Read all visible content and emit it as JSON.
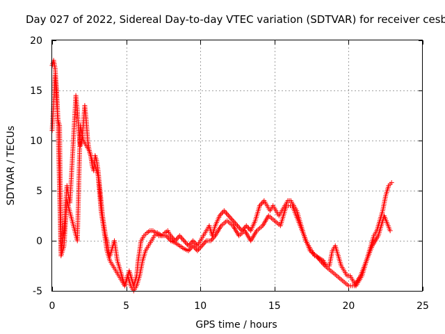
{
  "chart_data": {
    "type": "scatter",
    "title": "Day 027 of 2022, Sidereal Day-to-day VTEC variation (SDTVAR) for receiver cesb",
    "xlabel": "GPS time / hours",
    "ylabel": "SDTVAR / TECUs",
    "xlim": [
      0,
      25
    ],
    "ylim": [
      -5,
      20
    ],
    "x_ticks": [
      "0",
      "5",
      "10",
      "15",
      "20",
      "25"
    ],
    "y_ticks": [
      "-5",
      "0",
      "5",
      "10",
      "15",
      "20"
    ],
    "grid": true,
    "marker": "+",
    "series": [
      {
        "name": "SDTVAR",
        "color": "#ff0000",
        "x": [
          0.0,
          0.1,
          0.2,
          0.3,
          0.4,
          0.5,
          0.6,
          0.7,
          0.8,
          0.9,
          1.0,
          1.1,
          1.2,
          1.6,
          1.7,
          1.8,
          1.9,
          2.0,
          2.1,
          2.2,
          2.3,
          2.4,
          2.5,
          2.6,
          2.7,
          2.8,
          2.9,
          3.0,
          3.1,
          3.2,
          3.3,
          3.4,
          3.5,
          3.6,
          3.7,
          3.8,
          3.9,
          4.0,
          4.1,
          4.2,
          4.3,
          4.4,
          4.5,
          4.6,
          4.7,
          4.8,
          4.9,
          5.0,
          5.1,
          5.2,
          5.3,
          5.4,
          5.5,
          5.6,
          5.7,
          5.8,
          5.9,
          6.0,
          6.2,
          6.4,
          6.6,
          6.8,
          7.0,
          7.2,
          7.4,
          7.6,
          7.8,
          8.0,
          8.3,
          8.6,
          8.9,
          9.2,
          9.5,
          9.8,
          10.0,
          10.2,
          10.4,
          10.6,
          10.8,
          11.0,
          11.3,
          11.6,
          11.9,
          12.2,
          12.5,
          12.8,
          13.1,
          13.4,
          13.7,
          14.0,
          14.3,
          14.5,
          14.7,
          14.9,
          15.1,
          15.3,
          15.5,
          15.7,
          15.9,
          16.1,
          16.3,
          16.5,
          16.7,
          16.9,
          17.1,
          17.3,
          17.5,
          17.7,
          17.8,
          18.3,
          18.5,
          18.7,
          18.9,
          19.1,
          19.3,
          19.5,
          19.7,
          19.9,
          20.1,
          20.3,
          20.5,
          20.7,
          20.9,
          21.1,
          21.3,
          21.5,
          21.7,
          21.9,
          22.1,
          22.3,
          22.5,
          22.7,
          22.9
        ],
        "values": [
          17.5,
          18.0,
          17.2,
          15.0,
          12.0,
          11.5,
          -1.0,
          0.0,
          1.0,
          3.5,
          5.5,
          4.5,
          3.8,
          14.5,
          13.0,
          11.0,
          9.5,
          10.0,
          11.5,
          13.5,
          12.0,
          10.0,
          9.0,
          8.5,
          7.5,
          7.0,
          8.5,
          8.0,
          7.0,
          5.5,
          4.0,
          2.5,
          1.5,
          0.5,
          0.0,
          -1.0,
          -1.5,
          -1.0,
          -0.5,
          0.0,
          -1.0,
          -2.0,
          -2.5,
          -3.0,
          -3.5,
          -4.0,
          -4.5,
          -4.0,
          -3.5,
          -3.0,
          -3.5,
          -4.0,
          -4.5,
          -4.0,
          -3.5,
          -2.0,
          -1.0,
          0.0,
          0.5,
          0.8,
          1.0,
          1.0,
          0.8,
          0.5,
          0.5,
          0.8,
          1.0,
          0.5,
          0.0,
          0.5,
          0.0,
          -0.5,
          0.0,
          -0.5,
          0.0,
          0.5,
          1.0,
          1.5,
          0.5,
          1.5,
          2.5,
          3.0,
          2.5,
          2.0,
          1.5,
          1.0,
          1.5,
          1.0,
          2.0,
          3.5,
          4.0,
          3.5,
          3.0,
          3.5,
          3.0,
          2.5,
          3.0,
          3.5,
          4.0,
          4.0,
          3.5,
          3.0,
          2.0,
          1.0,
          0.0,
          -0.5,
          -1.0,
          -1.5,
          -1.5,
          -2.0,
          -2.5,
          -2.5,
          -1.0,
          -0.5,
          -1.5,
          -2.5,
          -3.0,
          -3.5,
          -3.5,
          -4.0,
          -4.5,
          -4.0,
          -3.5,
          -2.5,
          -1.5,
          -0.5,
          0.5,
          1.0,
          2.0,
          3.0,
          4.5,
          5.5,
          5.8
        ],
        "secondary_x": [
          0.0,
          0.2,
          0.4,
          0.6,
          0.8,
          1.0,
          1.7,
          1.9,
          2.1,
          2.3,
          2.5,
          2.7,
          2.9,
          3.1,
          3.3,
          3.5,
          3.7,
          3.9,
          4.1,
          4.3,
          4.5,
          4.7,
          4.9,
          5.1,
          5.3,
          5.5,
          5.7,
          5.9,
          6.1,
          6.3,
          6.5,
          6.7,
          6.9,
          7.1,
          7.4,
          7.7,
          8.0,
          8.3,
          8.6,
          8.9,
          9.2,
          9.5,
          9.8,
          10.1,
          10.4,
          10.7,
          11.0,
          11.4,
          11.8,
          12.2,
          12.6,
          13.0,
          13.4,
          13.8,
          14.2,
          14.6,
          15.0,
          15.4,
          15.8,
          16.2,
          16.6,
          17.0,
          17.4,
          17.8,
          18.4,
          18.8,
          19.2,
          19.6,
          20.0,
          20.4,
          20.8,
          21.2,
          21.6,
          22.0,
          22.4,
          22.8
        ],
        "secondary_values": [
          11.0,
          16.5,
          11.5,
          -1.5,
          -0.5,
          4.0,
          0.0,
          11.5,
          10.0,
          9.5,
          9.0,
          8.0,
          7.5,
          6.5,
          3.0,
          1.0,
          -1.0,
          -2.0,
          -2.5,
          -3.0,
          -3.5,
          -4.0,
          -4.5,
          -3.5,
          -4.5,
          -5.0,
          -4.5,
          -3.5,
          -2.0,
          -1.0,
          -0.5,
          0.0,
          0.5,
          0.8,
          0.5,
          0.5,
          0.0,
          -0.2,
          -0.5,
          -0.8,
          -1.0,
          -0.5,
          -1.0,
          -0.5,
          0.0,
          0.0,
          0.5,
          1.5,
          2.0,
          1.5,
          0.5,
          1.0,
          0.0,
          1.0,
          1.5,
          2.5,
          2.0,
          1.5,
          3.5,
          3.5,
          2.0,
          0.5,
          -1.0,
          -1.5,
          -2.5,
          -3.0,
          -3.5,
          -4.0,
          -4.5,
          -4.5,
          -3.5,
          -2.0,
          -0.5,
          0.5,
          2.5,
          1.0
        ]
      }
    ]
  }
}
